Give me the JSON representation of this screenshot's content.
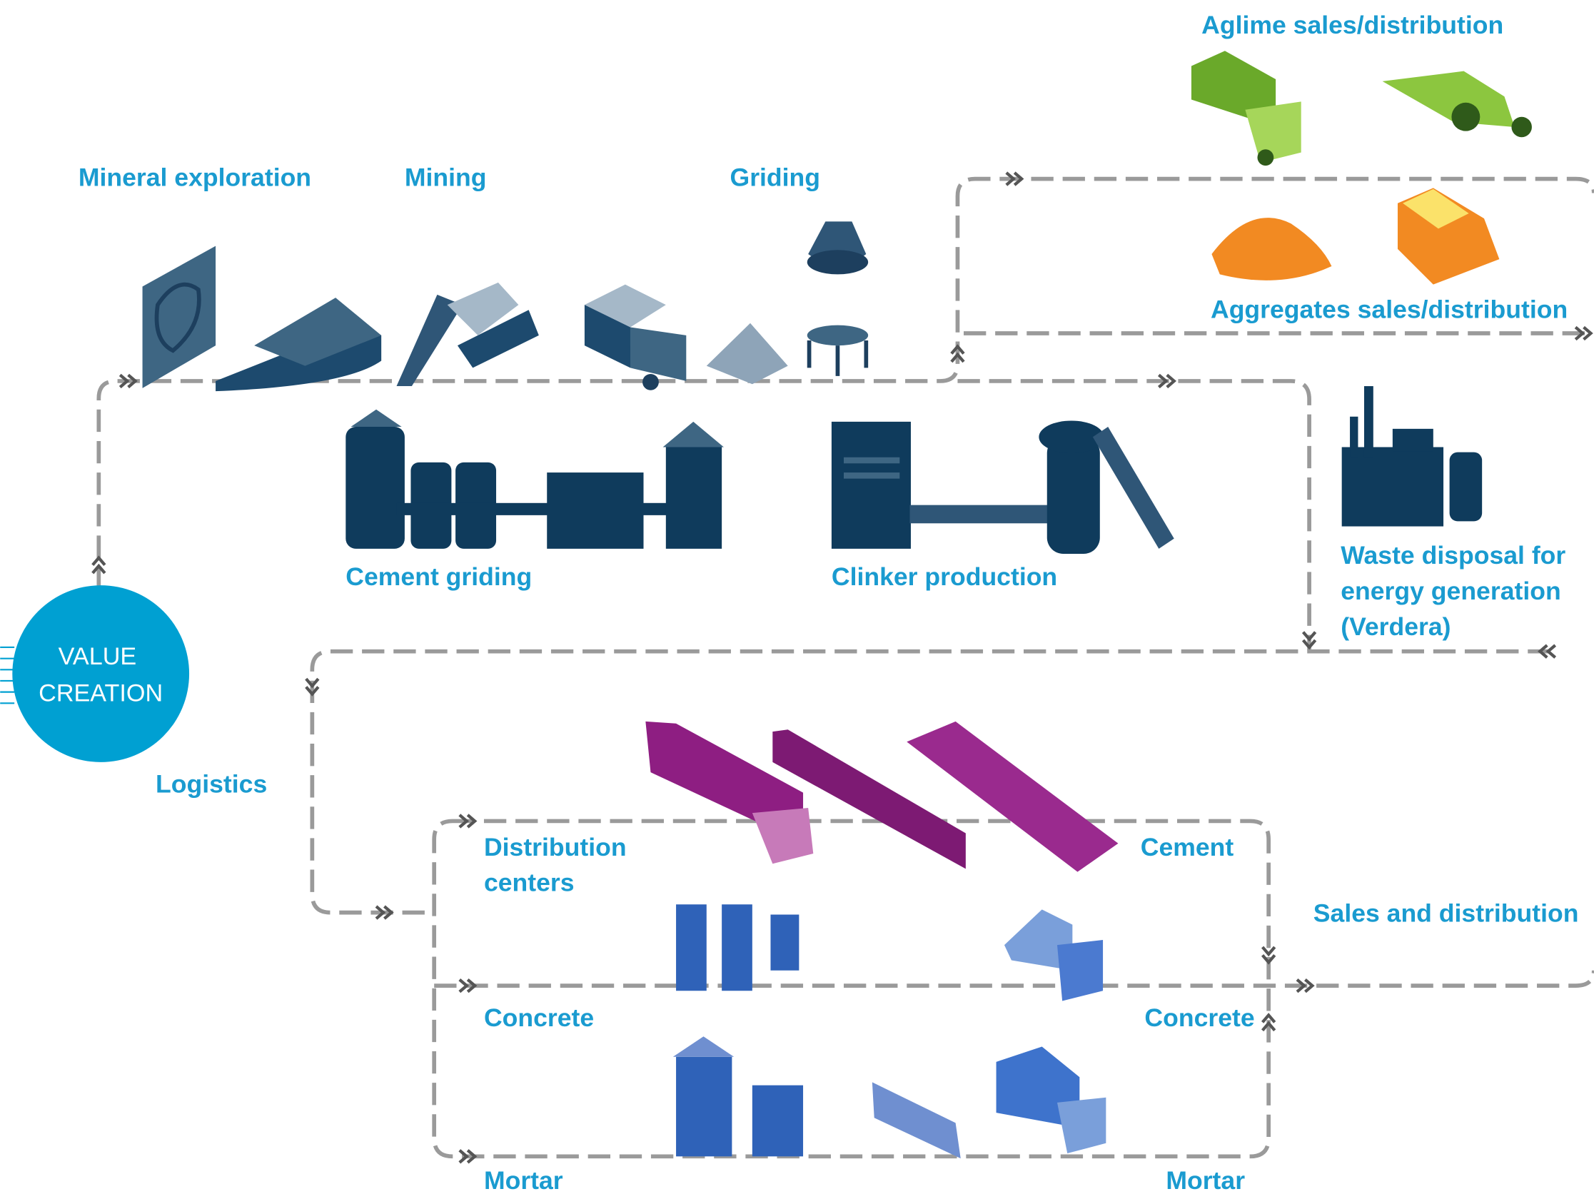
{
  "center": {
    "lines": [
      "VALUE",
      "CREATION"
    ]
  },
  "labels": {
    "mineral_exploration": "Mineral exploration",
    "mining": "Mining",
    "griding": "Griding",
    "aglime": "Aglime sales/distribution",
    "aggregates": "Aggregates sales/distribution",
    "cement_griding": "Cement griding",
    "clinker": "Clinker production",
    "waste": [
      "Waste disposal for",
      "energy generation",
      "(Verdera)"
    ],
    "logistics": "Logistics",
    "distribution_centers": [
      "Distribution",
      "centers"
    ],
    "cement": "Cement",
    "sales": "Sales and distribution",
    "concrete_left": "Concrete",
    "concrete_right": "Concrete",
    "mortar_left": "Mortar",
    "mortar_right": "Mortar"
  }
}
